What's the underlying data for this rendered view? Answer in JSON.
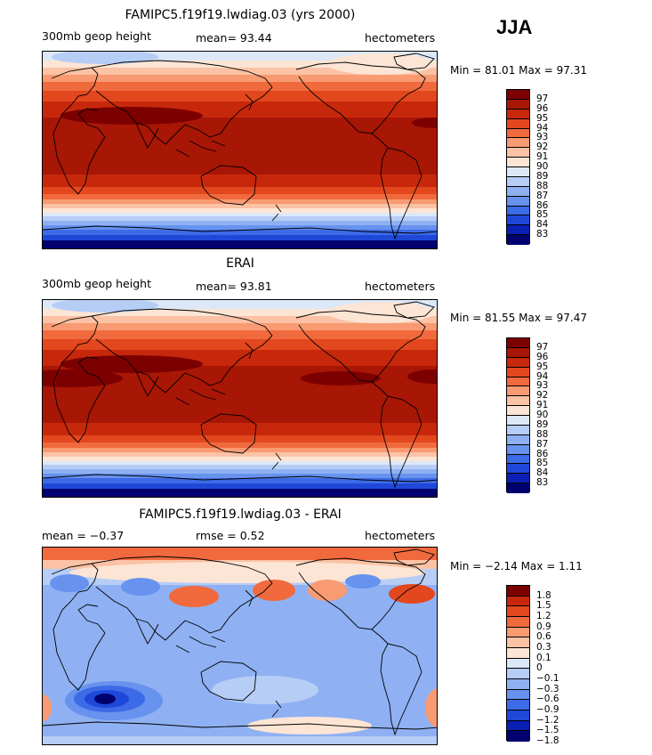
{
  "season": "JJA",
  "colors": {
    "abs_scale": [
      "#00006e",
      "#0a1fb4",
      "#1f48d9",
      "#3d6ae6",
      "#6792ee",
      "#8fb1f3",
      "#b6cdf6",
      "#dce8f8",
      "#fde5d5",
      "#fbc2a5",
      "#f89a72",
      "#f06a3e",
      "#e3471e",
      "#c7280c",
      "#a81605",
      "#7d0000"
    ],
    "diff_scale": [
      "#00006e",
      "#0a1fb4",
      "#1f48d9",
      "#3d6ae6",
      "#6792ee",
      "#8fb1f3",
      "#b6cdf6",
      "#dce8f8",
      "#fde5d5",
      "#fbc2a5",
      "#f89a72",
      "#f06a3e",
      "#e3471e",
      "#c7280c",
      "#7d0000"
    ]
  },
  "panels": [
    {
      "title": "FAMIPC5.f19f19.lwdiag.03 (yrs 2000)",
      "left_label": "300mb geop height",
      "center_label": "mean=   93.44",
      "right_label": "hectometers",
      "minmax": "Min =   81.01  Max =   97.31",
      "colorbar_labels": [
        "97",
        "96",
        "95",
        "94",
        "93",
        "92",
        "91",
        "90",
        "89",
        "88",
        "87",
        "86",
        "85",
        "84",
        "83"
      ]
    },
    {
      "title": "ERAI",
      "left_label": "300mb geop height",
      "center_label": "mean=   93.81",
      "right_label": "hectometers",
      "minmax": "Min =   81.55  Max =   97.47",
      "colorbar_labels": [
        "97",
        "96",
        "95",
        "94",
        "93",
        "92",
        "91",
        "90",
        "89",
        "88",
        "87",
        "86",
        "85",
        "84",
        "83"
      ]
    },
    {
      "title": "FAMIPC5.f19f19.lwdiag.03 - ERAI",
      "left_label": "mean =   −0.37",
      "center_label": "rmse =     0.52",
      "right_label": "hectometers",
      "minmax": "Min =   −2.14  Max =    1.11",
      "colorbar_labels": [
        "1.8",
        "1.5",
        "1.2",
        "0.9",
        "0.6",
        "0.3",
        "0.1",
        "0",
        "−0.1",
        "−0.3",
        "−0.6",
        "−0.9",
        "−1.2",
        "−1.5",
        "−1.8"
      ]
    }
  ]
}
